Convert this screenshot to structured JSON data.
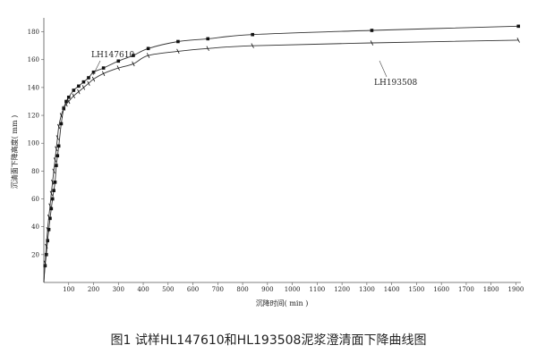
{
  "caption": "图1 试样HL147610和HL193508泥浆澄清面下降曲线图",
  "chart_data": {
    "type": "line",
    "title": "",
    "xlabel": "沉降时间(  min  )",
    "ylabel": "沉清面下降高度(  mm  )",
    "xlim": [
      0,
      1920
    ],
    "ylim": [
      0,
      190
    ],
    "xticks": [
      100,
      200,
      300,
      400,
      500,
      600,
      700,
      800,
      900,
      1000,
      1100,
      1200,
      1300,
      1400,
      1500,
      1600,
      1700,
      1800,
      1900
    ],
    "yticks": [
      20,
      40,
      60,
      80,
      100,
      120,
      140,
      160,
      180
    ],
    "grid": false,
    "series": [
      {
        "name": "LH147610",
        "marker": "square",
        "x": [
          0,
          5,
          10,
          15,
          20,
          25,
          30,
          35,
          40,
          45,
          50,
          55,
          60,
          70,
          80,
          90,
          100,
          120,
          140,
          160,
          180,
          200,
          240,
          300,
          360,
          420,
          540,
          660,
          840,
          1320,
          1910
        ],
        "y": [
          0,
          12,
          20,
          30,
          38,
          46,
          53,
          60,
          66,
          72,
          84,
          91,
          98,
          114,
          125,
          130,
          133,
          138,
          141,
          144,
          147,
          151,
          154,
          159,
          163,
          168,
          173,
          175,
          178,
          181,
          184
        ]
      },
      {
        "name": "LH193508",
        "marker": "tick",
        "x": [
          0,
          5,
          10,
          15,
          20,
          25,
          30,
          35,
          40,
          45,
          50,
          55,
          60,
          70,
          80,
          90,
          100,
          120,
          140,
          160,
          180,
          200,
          240,
          300,
          360,
          420,
          540,
          660,
          840,
          1320,
          1910
        ],
        "y": [
          0,
          14,
          26,
          38,
          47,
          55,
          64,
          72,
          80,
          88,
          96,
          104,
          112,
          120,
          125,
          128,
          130,
          134,
          137,
          140,
          143,
          146,
          150,
          154,
          157,
          163,
          166,
          168,
          170,
          172,
          174
        ]
      }
    ],
    "annotations": [
      {
        "text": "LH147610",
        "series": "LH147610"
      },
      {
        "text": "LH193508",
        "series": "LH193508"
      }
    ]
  }
}
